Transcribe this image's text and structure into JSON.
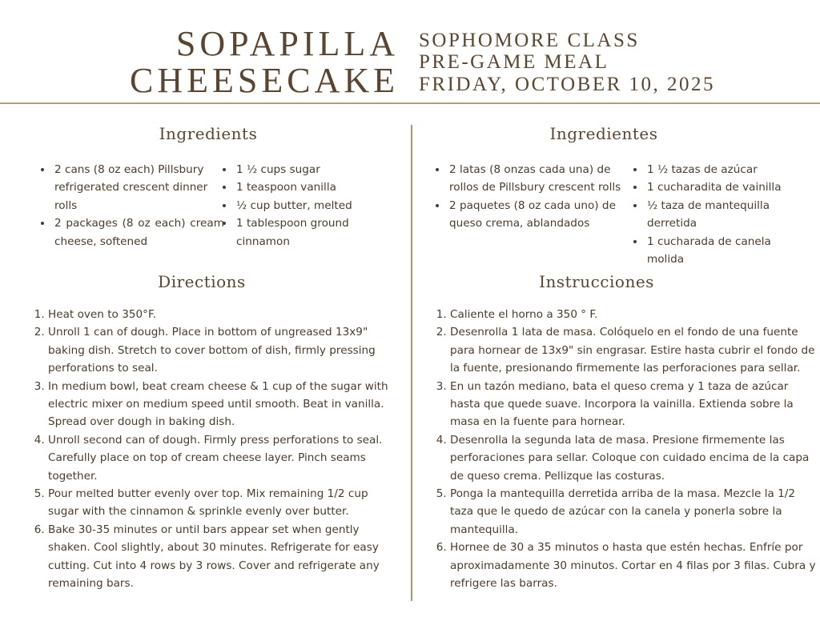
{
  "title": {
    "line1": "SOPAPILLA",
    "line2": "CHEESECAKE"
  },
  "subtitle": {
    "line1": "SOPHOMORE CLASS",
    "line2": "PRE-GAME MEAL",
    "line3": "FRIDAY, OCTOBER 10, 2025"
  },
  "english": {
    "ingredients_heading": "Ingredients",
    "ingredients_col1": [
      "2 cans (8 oz each) Pillsbury refrigerated crescent dinner rolls",
      "2 packages (8 oz each) cream cheese, softened"
    ],
    "ingredients_col2": [
      "1 ½ cups sugar",
      "1 teaspoon vanilla",
      "½ cup butter, melted",
      "1 tablespoon ground cinnamon"
    ],
    "directions_heading": "Directions",
    "directions": [
      "Heat oven to 350°F.",
      "Unroll 1 can of dough. Place in bottom of ungreased 13x9\" baking dish. Stretch to cover bottom of dish, firmly pressing perforations to seal.",
      "In medium bowl, beat cream cheese & 1 cup of the sugar with electric mixer on medium speed until smooth. Beat in vanilla. Spread over dough in baking dish.",
      "Unroll second can of dough. Firmly press perforations to seal. Carefully place on top of cream cheese layer. Pinch seams together.",
      "Pour melted butter evenly over top. Mix remaining 1/2 cup sugar with the cinnamon & sprinkle evenly over butter.",
      "Bake 30-35 minutes or until bars appear set when gently shaken. Cool slightly, about 30 minutes. Refrigerate for easy cutting. Cut into 4 rows by 3 rows. Cover and refrigerate any remaining bars."
    ]
  },
  "spanish": {
    "ingredients_heading": "Ingredientes",
    "ingredients_col1": [
      "2 latas (8 onzas cada una) de rollos de Pillsbury crescent rolls",
      "2 paquetes (8 oz cada uno) de queso crema, ablandados"
    ],
    "ingredients_col2": [
      "1 ½ tazas de azúcar",
      "1 cucharadita de vainilla",
      "½ taza de mantequilla derretida",
      "1 cucharada de canela molida"
    ],
    "directions_heading": "Instrucciones",
    "directions": [
      "Caliente el horno a 350 ° F.",
      "Desenrolla 1 lata de masa. Colóquelo en el fondo de una fuente para hornear de 13x9\" sin engrasar. Estire hasta cubrir el fondo de la fuente, presionando firmemente las perforaciones para sellar.",
      "En un tazón mediano, bata el queso crema y 1 taza de azúcar hasta que quede suave. Incorpora la vainilla. Extienda sobre la masa en la fuente para hornear.",
      "Desenrolla la segunda lata de masa. Presione firmemente las perforaciones para sellar. Coloque con cuidado encima de la capa de queso crema. Pellizque las costuras.",
      "Ponga la mantequilla derretida arriba de la masa. Mezcle la 1/2 taza que le quedo de azúcar con la canela y ponerla sobre la mantequilla.",
      "Hornee de 30 a 35 minutos o hasta que estén hechas. Enfríe por aproximadamente 30 minutos. Cortar en 4 filas por 3 filas. Cubra y refrigere las barras."
    ]
  }
}
